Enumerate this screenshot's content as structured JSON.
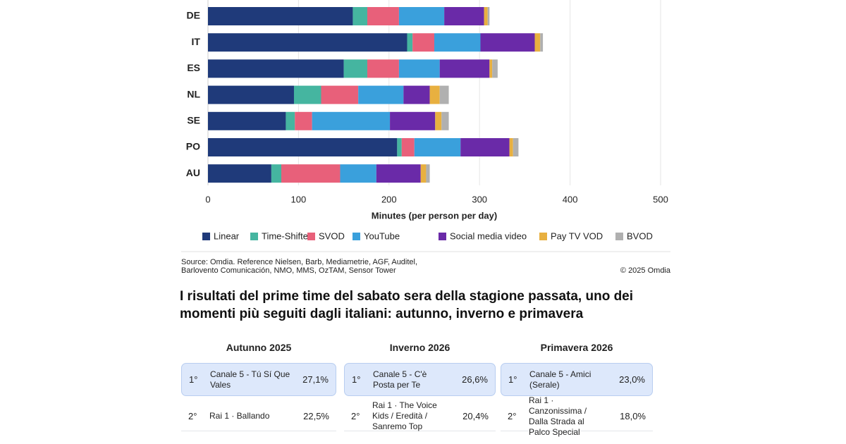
{
  "chart_data": {
    "type": "bar",
    "orientation": "horizontal",
    "stacked": true,
    "x_label": "Minutes (per person per day)",
    "categories": [
      "DE",
      "IT",
      "ES",
      "NL",
      "SE",
      "PO",
      "AU"
    ],
    "series": [
      {
        "name": "Linear",
        "color": "#1f3a7a",
        "values": [
          160,
          220,
          150,
          95,
          86,
          209,
          70
        ]
      },
      {
        "name": "Time-Shifted",
        "color": "#45b5a0",
        "values": [
          16,
          6,
          26,
          30,
          10,
          5,
          11
        ]
      },
      {
        "name": "SVOD",
        "color": "#e8607a",
        "values": [
          35,
          24,
          35,
          41,
          19,
          14,
          65
        ]
      },
      {
        "name": "YouTube",
        "color": "#3aa0dc",
        "values": [
          50,
          51,
          45,
          50,
          86,
          51,
          40
        ]
      },
      {
        "name": "Social media video",
        "color": "#6a2aa8",
        "values": [
          44,
          60,
          55,
          29,
          50,
          54,
          49
        ]
      },
      {
        "name": "Pay TV VOD",
        "color": "#e8b040",
        "values": [
          4,
          6,
          3,
          11,
          7,
          4,
          6
        ]
      },
      {
        "name": "BVOD",
        "color": "#b0b0b0",
        "values": [
          2,
          3,
          6,
          10,
          8,
          6,
          4
        ]
      }
    ],
    "xlim": [
      0,
      500
    ],
    "xticks": [
      0,
      100,
      200,
      300,
      400,
      500
    ],
    "grid": true,
    "legend": "bottom"
  },
  "source": {
    "lines": [
      "Source: Omdia. Reference Nielsen, Barb, Mediametrie, AGF, Auditel,",
      "Barlovento Comunicación, NMO, MMS, OzTAM, Sensor Tower"
    ],
    "copyright": "© 2025 Omdia"
  },
  "article": {
    "heading": [
      "I risultati del prime time del sabato sera della stagione passata, uno dei",
      "momenti più seguiti dagli italiani: autunno, inverno e primavera"
    ]
  },
  "table": {
    "columns": [
      {
        "header": "Autunno 2025",
        "rows": [
          {
            "rank": "1°",
            "show": "Canale 5 - Tú Sí Que Vales",
            "share": "27,1%"
          },
          {
            "rank": "2°",
            "show": "Rai 1 · Ballando",
            "share": "22,5%"
          }
        ]
      },
      {
        "header": "Inverno 2026",
        "rows": [
          {
            "rank": "1°",
            "show": "Canale 5 - C'è Posta per Te",
            "share": "26,6%"
          },
          {
            "rank": "2°",
            "show": "Rai 1 · The Voice Kids / Eredità / Sanremo Top",
            "share": "20,4%"
          }
        ]
      },
      {
        "header": "Primavera 2026",
        "rows": [
          {
            "rank": "1°",
            "show": "Canale 5 - Amici (Serale)",
            "share": "23,0%"
          },
          {
            "rank": "2°",
            "show": "Rai 1 · Canzonissima / Dalla Strada al Palco Special",
            "share": "18,0%"
          }
        ]
      }
    ]
  }
}
